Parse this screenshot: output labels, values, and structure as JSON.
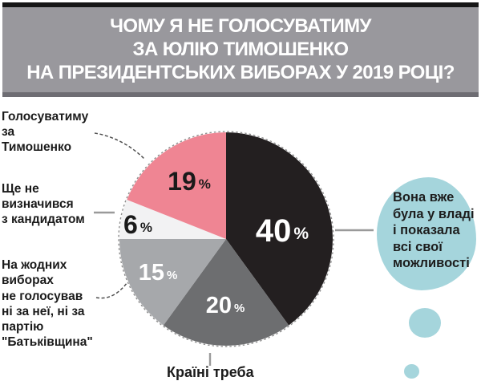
{
  "title": {
    "lines": [
      "ЧОМУ Я НЕ ГОЛОСУВАТИМУ",
      "ЗА ЮЛІЮ ТИМОШЕНКО",
      "НА ПРЕЗИДЕНТСЬКИХ ВИБОРАХ У 2019 РОЦІ?"
    ]
  },
  "chart_data": {
    "type": "pie",
    "title": "ЧОМУ Я НЕ ГОЛОСУВАТИМУ ЗА ЮЛІЮ ТИМОШЕНКО НА ПРЕЗИДЕНТСЬКИХ ВИБОРАХ У 2019 РОЦІ?",
    "unit": "%",
    "start_angle_deg": 0,
    "direction": "clockwise",
    "slices": [
      {
        "label": "Вона вже була у владі і показала всі свої можливості",
        "value": 40,
        "color": "#231f20",
        "text_color": "#ffffff"
      },
      {
        "label": "Країні треба",
        "value": 20,
        "color": "#6d6e70",
        "text_color": "#ffffff"
      },
      {
        "label": "На жодних виборах не голосував ні за неї, ні за партію \"Батьківщина\"",
        "value": 15,
        "color": "#a6a8ab",
        "text_color": "#ffffff"
      },
      {
        "label": "Ще не визначився з кандидатом",
        "value": 6,
        "color": "#f2f2f3",
        "text_color": "#1a1a1a"
      },
      {
        "label": "Голосуватиму за Тимошенко",
        "value": 19,
        "color": "#ef8593",
        "text_color": "#1a1a1a"
      }
    ]
  },
  "annotations": {
    "left_label_1": "Голосуватиму\nза\nТимошенко",
    "left_label_2": "Ще не\nвизначився\nз кандидатом",
    "left_label_3": "На жодних\nвиборах\nне голосував\nні за неї, ні за\nпартію\n\"Батьківщина\"",
    "bottom_label": "Країні треба",
    "bubble_text": "Вона вже\nбула у владі\nі показала\nвсі свої\nможливості"
  },
  "colors": {
    "header_bg": "#99989d",
    "header_border_top": "#161616",
    "header_border_bottom": "#6e6d73",
    "bubble": "#a5d5dc",
    "leader_solid": "#9a9a9a",
    "leader_dashed": "#4d4d4d",
    "page_bg": "#ffffff",
    "text": "#1b1b1b"
  }
}
